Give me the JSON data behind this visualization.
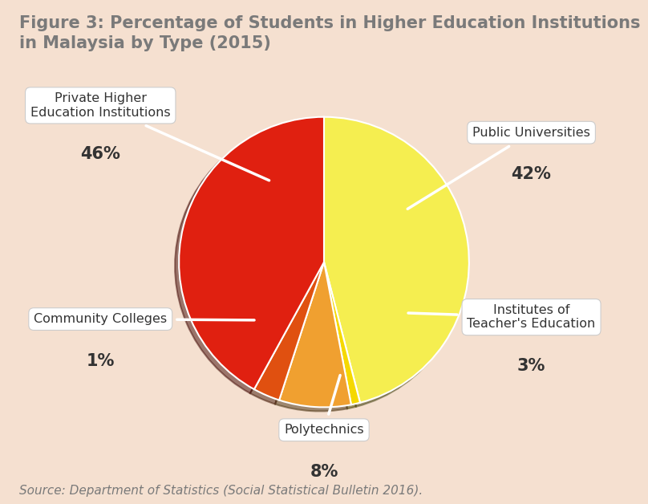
{
  "title": "Figure 3: Percentage of Students in Higher Education Institutions\nin Malaysia by Type (2015)",
  "source": "Source: Department of Statistics (Social Statistical Bulletin 2016).",
  "background_color": "#f5e0d0",
  "title_color": "#7a7a7a",
  "slices": [
    {
      "label": "Private Higher\nEducation Institutions",
      "pct": 46,
      "color": "#f5ee50"
    },
    {
      "label": "Community Colleges",
      "pct": 1,
      "color": "#f5d800"
    },
    {
      "label": "Polytechnics",
      "pct": 8,
      "color": "#f0a030"
    },
    {
      "label": "Institutes of\nTeacher's Education",
      "pct": 3,
      "color": "#e05010"
    },
    {
      "label": "Public Universities",
      "pct": 42,
      "color": "#e02010"
    }
  ],
  "label_fontsize": 11.5,
  "pct_fontsize": 15,
  "title_fontsize": 15,
  "source_fontsize": 11
}
